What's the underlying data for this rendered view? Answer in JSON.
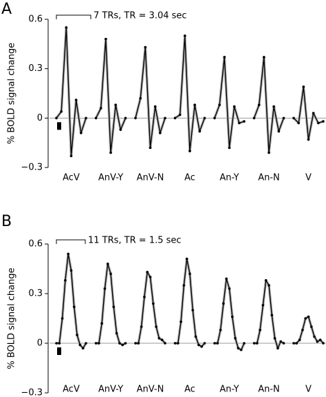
{
  "chart_data": [
    {
      "type": "line",
      "panel": "A",
      "annotation": "7 TRs, TR = 3.04 sec",
      "ylabel": "% BOLD signal change",
      "color": "#000000",
      "categories": [
        "AcV",
        "AnV-Y",
        "AnV-N",
        "Ac",
        "An-Y",
        "An-N",
        "V"
      ],
      "values": [
        [
          0,
          0.04,
          0.55,
          -0.23,
          0.11,
          -0.09,
          0
        ],
        [
          0,
          0.06,
          0.48,
          -0.21,
          0.08,
          -0.07,
          0
        ],
        [
          0,
          0.12,
          0.43,
          -0.18,
          0.07,
          -0.09,
          0
        ],
        [
          0,
          0.02,
          0.5,
          -0.2,
          0.08,
          -0.08,
          0
        ],
        [
          0,
          0.08,
          0.37,
          -0.18,
          0.07,
          -0.03,
          -0.02
        ],
        [
          0,
          0.08,
          0.37,
          -0.21,
          0.07,
          -0.08,
          0
        ],
        [
          0,
          -0.03,
          0.19,
          -0.13,
          0.03,
          -0.03,
          -0.02
        ]
      ],
      "ylim": [
        -0.3,
        0.6
      ],
      "yticks": [
        {
          "value": -0.3,
          "label": "−0.3"
        },
        0,
        0.3,
        0.6
      ]
    },
    {
      "type": "line",
      "panel": "B",
      "annotation": "11 TRs, TR = 1.5 sec",
      "ylabel": "% BOLD signal change",
      "color": "#000000",
      "categories": [
        "AcV",
        "AnV-Y",
        "AnV-N",
        "Ac",
        "An-Y",
        "An-N",
        "V"
      ],
      "values": [
        [
          0,
          0,
          0.15,
          0.38,
          0.54,
          0.44,
          0.22,
          0.05,
          -0.01,
          -0.03,
          0
        ],
        [
          0,
          0,
          0.12,
          0.33,
          0.48,
          0.42,
          0.22,
          0.06,
          0,
          -0.01,
          0
        ],
        [
          0,
          0,
          0.1,
          0.28,
          0.43,
          0.4,
          0.24,
          0.1,
          0.03,
          0.02,
          0
        ],
        [
          0,
          0,
          0.13,
          0.35,
          0.51,
          0.42,
          0.2,
          0.04,
          -0.01,
          -0.02,
          0
        ],
        [
          0,
          0,
          0.08,
          0.24,
          0.39,
          0.33,
          0.16,
          0.03,
          -0.03,
          -0.04,
          0
        ],
        [
          0,
          0,
          0.08,
          0.23,
          0.38,
          0.35,
          0.17,
          0.03,
          -0.03,
          0.01,
          0
        ],
        [
          0,
          0,
          0.02,
          0.08,
          0.15,
          0.16,
          0.1,
          0.04,
          0.01,
          0.02,
          0
        ]
      ],
      "ylim": [
        -0.3,
        0.6
      ],
      "yticks": [
        {
          "value": -0.3,
          "label": "−0.3"
        },
        0,
        0.3,
        0.6
      ]
    }
  ]
}
